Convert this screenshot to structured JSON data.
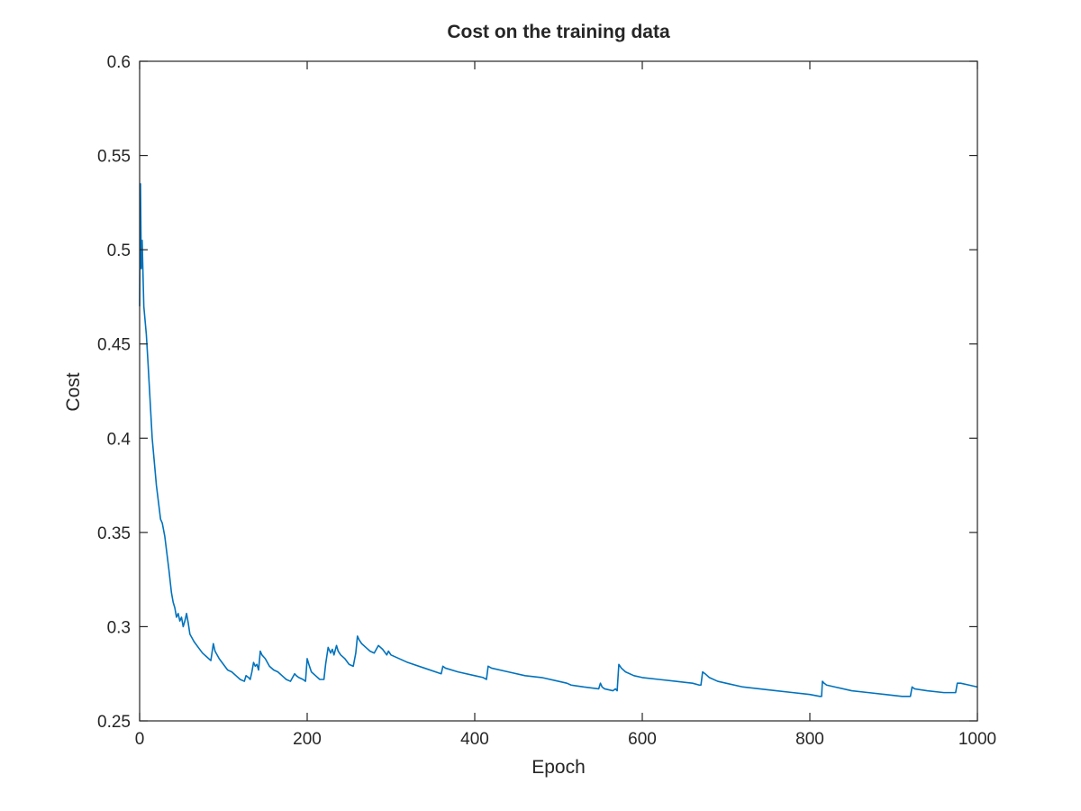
{
  "chart_data": {
    "type": "line",
    "title": "Cost on the training data",
    "xlabel": "Epoch",
    "ylabel": "Cost",
    "xlim": [
      0,
      1000
    ],
    "ylim": [
      0.25,
      0.6
    ],
    "xticks": [
      0,
      200,
      400,
      600,
      800,
      1000
    ],
    "xtick_labels": [
      "0",
      "200",
      "400",
      "600",
      "800",
      "1000"
    ],
    "yticks": [
      0.25,
      0.3,
      0.35,
      0.4,
      0.45,
      0.5,
      0.55,
      0.6
    ],
    "ytick_labels": [
      "0.25",
      "0.3",
      "0.35",
      "0.4",
      "0.45",
      "0.5",
      "0.55",
      "0.6"
    ],
    "grid": false,
    "box": true,
    "line_color": "#0072bd",
    "series": [
      {
        "x": [
          0,
          1,
          2,
          3,
          5,
          8,
          10,
          15,
          20,
          25,
          27,
          30,
          35,
          38,
          40,
          42,
          44,
          46,
          48,
          50,
          52,
          54,
          56,
          58,
          60,
          65,
          70,
          75,
          80,
          85,
          88,
          90,
          95,
          100,
          105,
          110,
          115,
          120,
          125,
          127,
          130,
          132,
          134,
          136,
          138,
          140,
          142,
          144,
          146,
          150,
          155,
          160,
          165,
          170,
          175,
          180,
          185,
          187,
          190,
          195,
          198,
          200,
          202,
          205,
          210,
          215,
          220,
          222,
          225,
          228,
          230,
          232,
          235,
          237,
          240,
          245,
          250,
          255,
          258,
          260,
          262,
          265,
          270,
          275,
          280,
          285,
          290,
          295,
          297,
          300,
          320,
          340,
          360,
          362,
          365,
          380,
          400,
          410,
          414,
          416,
          420,
          440,
          460,
          480,
          500,
          510,
          515,
          530,
          548,
          550,
          552,
          555,
          565,
          568,
          570,
          572,
          575,
          580,
          590,
          600,
          620,
          640,
          660,
          668,
          670,
          672,
          675,
          680,
          690,
          700,
          720,
          740,
          760,
          780,
          800,
          812,
          814,
          815,
          817,
          820,
          830,
          850,
          870,
          890,
          910,
          918,
          920,
          922,
          925,
          940,
          960,
          972,
          974,
          976,
          980,
          990,
          1000
        ],
        "y": [
          0.47,
          0.535,
          0.49,
          0.505,
          0.47,
          0.455,
          0.44,
          0.4,
          0.375,
          0.357,
          0.355,
          0.348,
          0.33,
          0.318,
          0.313,
          0.31,
          0.305,
          0.307,
          0.303,
          0.305,
          0.3,
          0.303,
          0.307,
          0.302,
          0.296,
          0.292,
          0.289,
          0.286,
          0.284,
          0.282,
          0.291,
          0.287,
          0.283,
          0.28,
          0.277,
          0.276,
          0.274,
          0.272,
          0.271,
          0.274,
          0.273,
          0.272,
          0.276,
          0.281,
          0.279,
          0.28,
          0.277,
          0.287,
          0.285,
          0.283,
          0.279,
          0.277,
          0.276,
          0.274,
          0.272,
          0.271,
          0.275,
          0.274,
          0.273,
          0.272,
          0.271,
          0.283,
          0.28,
          0.276,
          0.274,
          0.272,
          0.272,
          0.28,
          0.289,
          0.286,
          0.288,
          0.285,
          0.29,
          0.287,
          0.285,
          0.283,
          0.28,
          0.279,
          0.286,
          0.295,
          0.293,
          0.291,
          0.289,
          0.287,
          0.286,
          0.29,
          0.288,
          0.285,
          0.287,
          0.285,
          0.281,
          0.278,
          0.275,
          0.279,
          0.278,
          0.276,
          0.274,
          0.273,
          0.272,
          0.279,
          0.278,
          0.276,
          0.274,
          0.273,
          0.271,
          0.27,
          0.269,
          0.268,
          0.267,
          0.27,
          0.268,
          0.267,
          0.266,
          0.267,
          0.266,
          0.28,
          0.278,
          0.276,
          0.274,
          0.273,
          0.272,
          0.271,
          0.27,
          0.269,
          0.269,
          0.276,
          0.275,
          0.273,
          0.271,
          0.27,
          0.268,
          0.267,
          0.266,
          0.265,
          0.264,
          0.263,
          0.263,
          0.271,
          0.27,
          0.269,
          0.268,
          0.266,
          0.265,
          0.264,
          0.263,
          0.263,
          0.263,
          0.268,
          0.267,
          0.266,
          0.265,
          0.265,
          0.265,
          0.27,
          0.27,
          0.269,
          0.268
        ]
      }
    ]
  }
}
